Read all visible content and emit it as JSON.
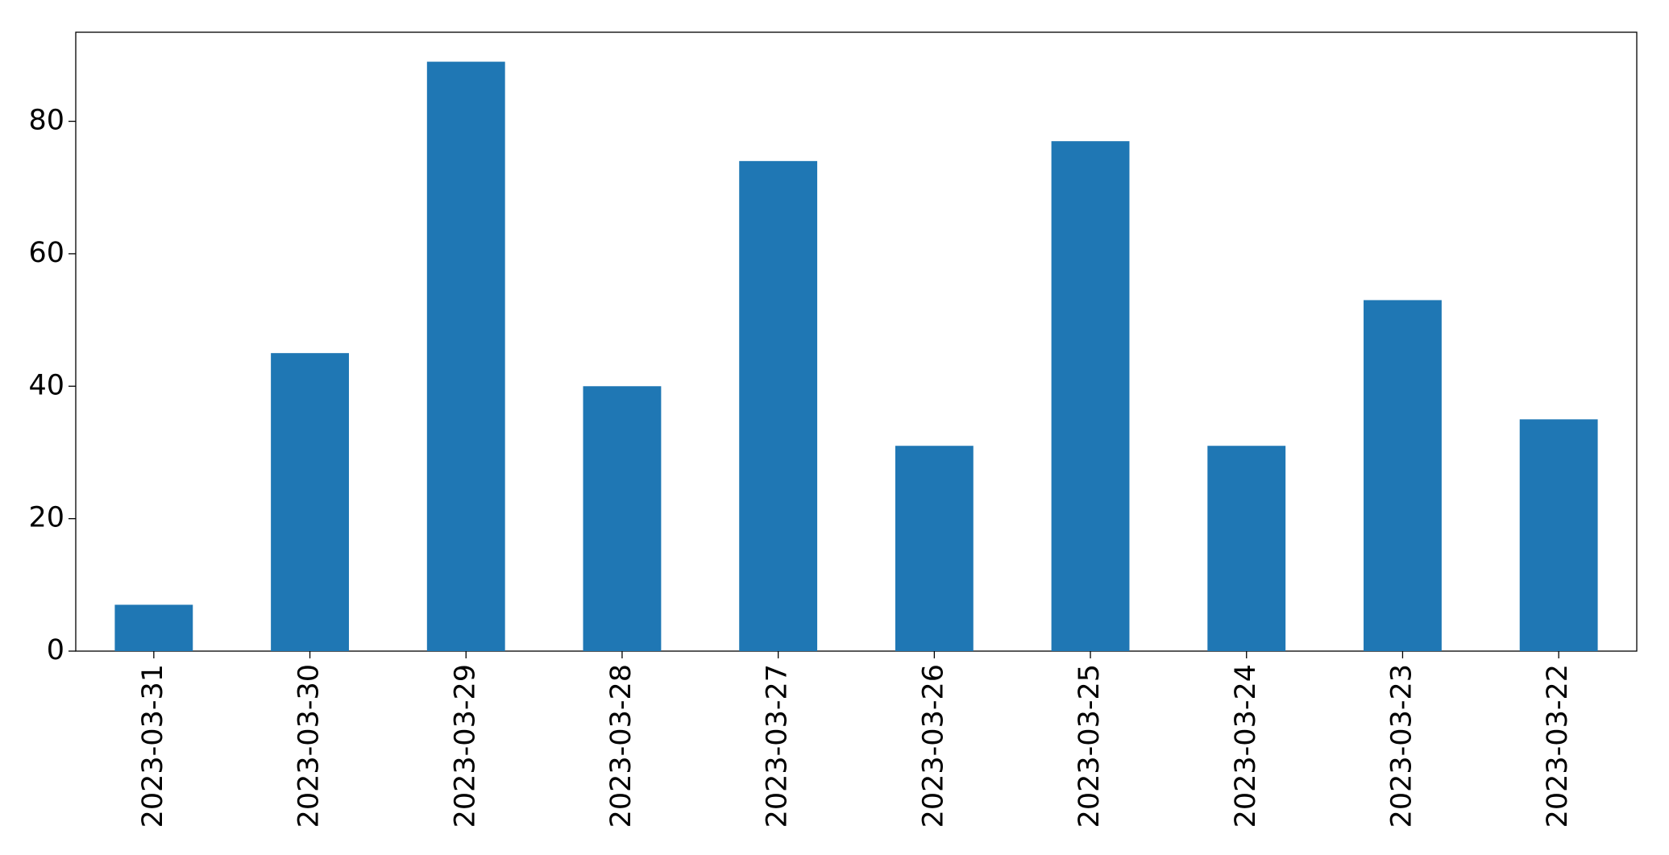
{
  "chart_data": {
    "type": "bar",
    "categories": [
      "2023-03-31",
      "2023-03-30",
      "2023-03-29",
      "2023-03-28",
      "2023-03-27",
      "2023-03-26",
      "2023-03-25",
      "2023-03-24",
      "2023-03-23",
      "2023-03-22"
    ],
    "values": [
      7,
      45,
      89,
      40,
      74,
      31,
      77,
      31,
      53,
      35
    ],
    "color": "#1f77b4",
    "ylim": [
      0,
      93.45
    ],
    "yticks": [
      0,
      20,
      40,
      60,
      80
    ],
    "grid": false
  }
}
